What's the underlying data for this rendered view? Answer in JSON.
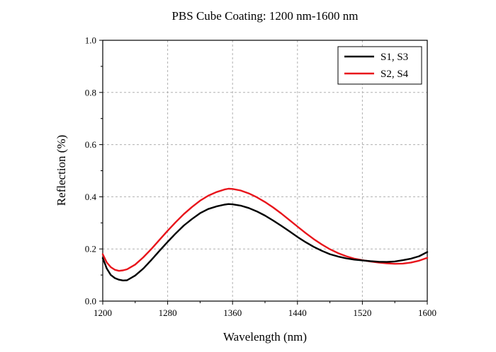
{
  "chart_data": {
    "type": "line",
    "title": "PBS Cube Coating: 1200 nm-1600 nm",
    "xlabel": "Wavelength (nm)",
    "ylabel": "Reflection (%)",
    "xlim": [
      1200,
      1600
    ],
    "ylim": [
      0.0,
      1.0
    ],
    "x_ticks": [
      1200,
      1280,
      1360,
      1440,
      1520,
      1600
    ],
    "x_tick_labels": [
      "1200",
      "1280",
      "1360",
      "1440",
      "1520",
      "1600"
    ],
    "y_ticks": [
      0.0,
      0.2,
      0.4,
      0.6,
      0.8,
      1.0
    ],
    "y_tick_labels": [
      "0.0",
      "0.2",
      "0.4",
      "0.6",
      "0.8",
      "1.0"
    ],
    "grid": true,
    "legend_position": "top-right",
    "x": [
      1200,
      1205,
      1210,
      1215,
      1220,
      1225,
      1230,
      1240,
      1250,
      1260,
      1270,
      1280,
      1290,
      1300,
      1310,
      1320,
      1330,
      1340,
      1350,
      1355,
      1360,
      1370,
      1380,
      1390,
      1400,
      1410,
      1420,
      1430,
      1440,
      1450,
      1460,
      1470,
      1480,
      1490,
      1500,
      1510,
      1520,
      1530,
      1540,
      1550,
      1560,
      1570,
      1580,
      1590,
      1600
    ],
    "series": [
      {
        "name": "S1, S3",
        "color": "#000000",
        "values": [
          0.165,
          0.125,
          0.1,
          0.088,
          0.082,
          0.079,
          0.08,
          0.098,
          0.125,
          0.158,
          0.193,
          0.227,
          0.26,
          0.29,
          0.315,
          0.337,
          0.353,
          0.363,
          0.37,
          0.372,
          0.371,
          0.366,
          0.357,
          0.344,
          0.328,
          0.309,
          0.289,
          0.268,
          0.246,
          0.226,
          0.208,
          0.193,
          0.18,
          0.171,
          0.164,
          0.159,
          0.156,
          0.153,
          0.151,
          0.15,
          0.152,
          0.157,
          0.163,
          0.172,
          0.188
        ]
      },
      {
        "name": "S2, S4",
        "color": "#e8141b",
        "values": [
          0.18,
          0.148,
          0.13,
          0.12,
          0.116,
          0.118,
          0.122,
          0.14,
          0.168,
          0.2,
          0.235,
          0.27,
          0.303,
          0.334,
          0.361,
          0.385,
          0.404,
          0.418,
          0.428,
          0.431,
          0.43,
          0.424,
          0.413,
          0.398,
          0.38,
          0.359,
          0.336,
          0.311,
          0.286,
          0.261,
          0.238,
          0.217,
          0.199,
          0.184,
          0.172,
          0.163,
          0.157,
          0.152,
          0.148,
          0.145,
          0.143,
          0.144,
          0.148,
          0.155,
          0.166
        ]
      }
    ]
  }
}
